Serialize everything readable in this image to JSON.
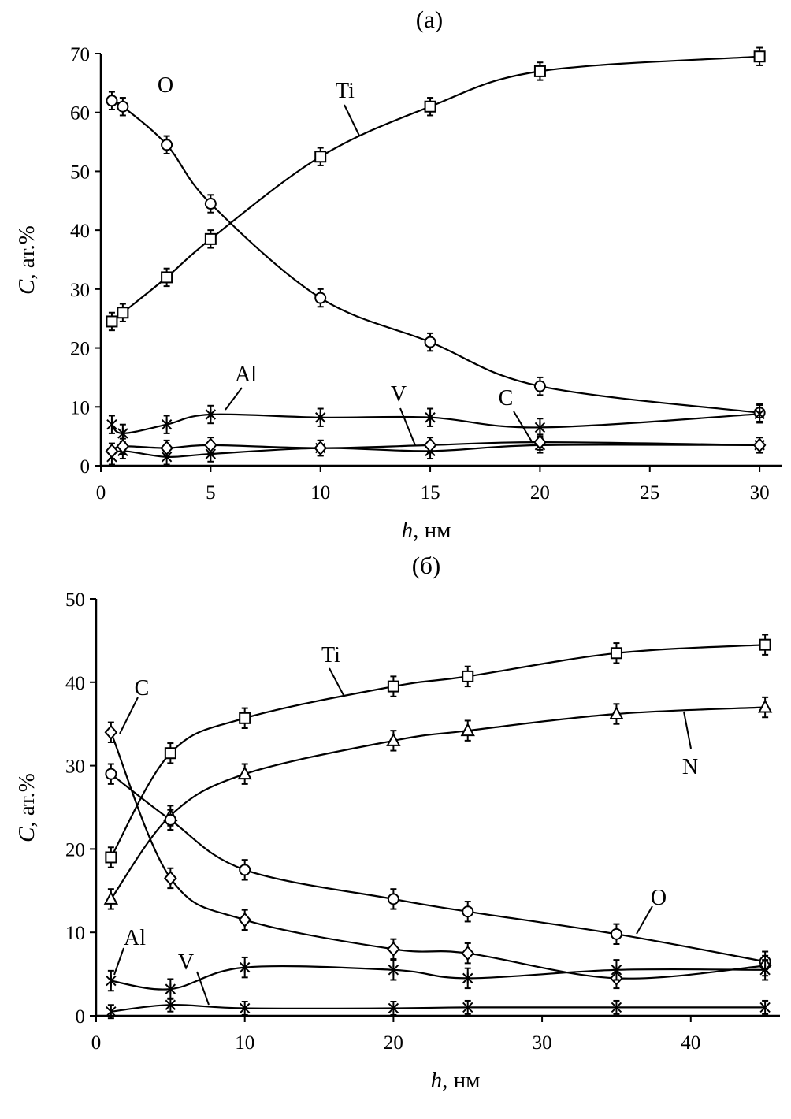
{
  "chart_data": [
    {
      "type": "line",
      "title": "(a)",
      "xlabel_var": "h",
      "xlabel_unit": ", нм",
      "ylabel_var": "C",
      "ylabel_unit": ", ат.%",
      "xlim": [
        0,
        31
      ],
      "ylim": [
        0,
        70
      ],
      "xticks": [
        0,
        5,
        10,
        15,
        20,
        25,
        30
      ],
      "yticks": [
        0,
        10,
        20,
        30,
        40,
        50,
        60,
        70
      ],
      "grid": false,
      "series": [
        {
          "name": "Ti",
          "marker": "square",
          "x": [
            0.5,
            1,
            3,
            5,
            10,
            15,
            20,
            30
          ],
          "y": [
            24.5,
            26,
            32,
            38.5,
            52.5,
            61,
            67,
            69.5
          ],
          "err": 1.5
        },
        {
          "name": "O",
          "marker": "circle",
          "x": [
            0.5,
            1,
            3,
            5,
            10,
            15,
            20,
            30
          ],
          "y": [
            62,
            61,
            54.5,
            44.5,
            28.5,
            21,
            13.5,
            9
          ],
          "err": 1.5
        },
        {
          "name": "Al",
          "marker": "star",
          "x": [
            0.5,
            1,
            3,
            5,
            10,
            15,
            20,
            30
          ],
          "y": [
            7,
            5.5,
            7,
            8.7,
            8.2,
            8.2,
            6.5,
            8.8
          ],
          "err": 1.5
        },
        {
          "name": "V",
          "marker": "cross",
          "x": [
            0.5,
            1,
            3,
            5,
            10,
            15,
            20,
            30
          ],
          "y": [
            1.5,
            2.5,
            1.5,
            2,
            3,
            2.5,
            3.5,
            3.5
          ],
          "err": 1.3
        },
        {
          "name": "C",
          "marker": "diamond",
          "x": [
            0.5,
            1,
            3,
            5,
            10,
            15,
            20,
            30
          ],
          "y": [
            2.5,
            3.3,
            3,
            3.5,
            3,
            3.5,
            4,
            3.5
          ],
          "err": 1.3
        }
      ]
    },
    {
      "type": "line",
      "title": "(б)",
      "xlabel_var": "h",
      "xlabel_unit": ", нм",
      "ylabel_var": "C",
      "ylabel_unit": ", ат.%",
      "xlim": [
        0,
        46
      ],
      "ylim": [
        0,
        50
      ],
      "xticks": [
        0,
        10,
        20,
        30,
        40
      ],
      "yticks": [
        0,
        10,
        20,
        30,
        40,
        50
      ],
      "grid": false,
      "series": [
        {
          "name": "Ti",
          "marker": "square",
          "x": [
            1,
            5,
            10,
            20,
            25,
            35,
            45
          ],
          "y": [
            19,
            31.5,
            35.7,
            39.5,
            40.7,
            43.5,
            44.5
          ],
          "err": 1.2
        },
        {
          "name": "N",
          "marker": "triangle",
          "x": [
            1,
            5,
            10,
            20,
            25,
            35,
            45
          ],
          "y": [
            14,
            24,
            29,
            33,
            34.2,
            36.2,
            37
          ],
          "err": 1.2
        },
        {
          "name": "O",
          "marker": "circle",
          "x": [
            1,
            5,
            10,
            20,
            25,
            35,
            45
          ],
          "y": [
            29,
            23.5,
            17.5,
            14,
            12.5,
            9.8,
            6.5
          ],
          "err": 1.2
        },
        {
          "name": "C",
          "marker": "diamond",
          "x": [
            1,
            5,
            10,
            20,
            25,
            35,
            45
          ],
          "y": [
            34,
            16.5,
            11.5,
            8,
            7.5,
            4.5,
            6
          ],
          "err": 1.2
        },
        {
          "name": "Al",
          "marker": "star",
          "x": [
            1,
            5,
            10,
            20,
            25,
            35,
            45
          ],
          "y": [
            4.2,
            3.2,
            5.8,
            5.5,
            4.5,
            5.5,
            5.5
          ],
          "err": 1.2
        },
        {
          "name": "V",
          "marker": "cross",
          "x": [
            1,
            5,
            10,
            20,
            25,
            35,
            45
          ],
          "y": [
            0.5,
            1.3,
            0.9,
            0.9,
            1,
            1,
            1
          ],
          "err": 0.8
        }
      ]
    }
  ]
}
